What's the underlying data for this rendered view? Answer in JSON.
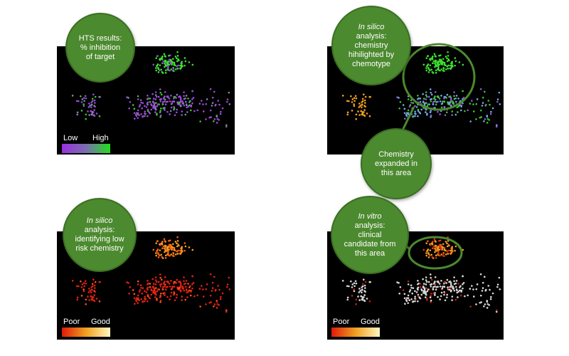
{
  "panels": [
    {
      "bubble": {
        "emphasis": null,
        "text": "HTS results: % inhibition of target"
      },
      "legend": {
        "low": "Low",
        "high": "High"
      }
    },
    {
      "bubble": {
        "emphasis": "In silico",
        "text": "analysis: chemistry hihilighted by chemotype"
      },
      "callout": "Chemistry expanded in this area"
    },
    {
      "bubble": {
        "emphasis": "In silico",
        "text": "analysis: identifying low risk chemistry"
      },
      "legend": {
        "low": "Poor",
        "high": "Good"
      }
    },
    {
      "bubble": {
        "emphasis": "In vitro",
        "text": "analysis: clinical candidate from this area"
      },
      "legend": {
        "low": "Poor",
        "high": "Good"
      }
    }
  ]
}
